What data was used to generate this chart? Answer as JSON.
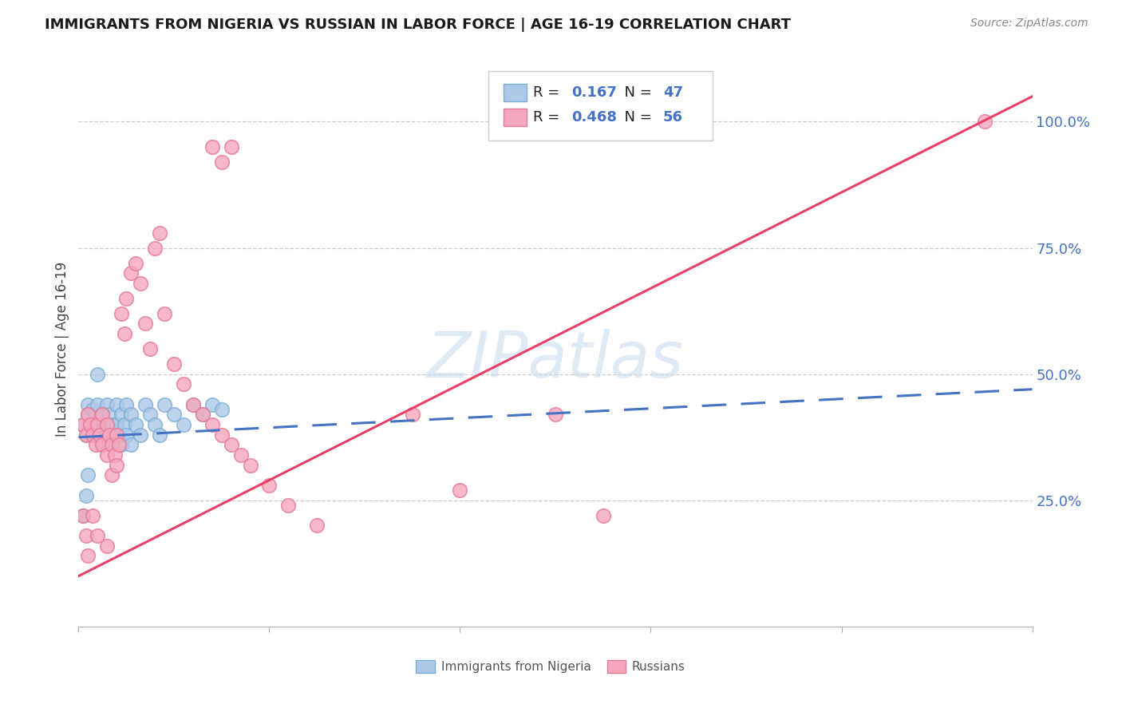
{
  "title": "IMMIGRANTS FROM NIGERIA VS RUSSIAN IN LABOR FORCE | AGE 16-19 CORRELATION CHART",
  "source": "Source: ZipAtlas.com",
  "ylabel": "In Labor Force | Age 16-19",
  "watermark": "ZIPatlas",
  "legend_nigeria_R": "0.167",
  "legend_nigeria_N": "47",
  "legend_russian_R": "0.468",
  "legend_russian_N": "56",
  "nigeria_fill": "#adc8e8",
  "nigeria_edge": "#7aafd4",
  "russian_fill": "#f5a8bc",
  "russian_edge": "#e87898",
  "nigeria_line_color": "#4472c4",
  "russian_line_color": "#e84068",
  "right_axis_color": "#4472c4",
  "bg_color": "#ffffff",
  "grid_color": "#cccccc",
  "title_color": "#1a1a1a",
  "source_color": "#888888",
  "ylabel_color": "#444444",
  "watermark_color": "#c8ddf0",
  "nigeria_x": [
    0.005,
    0.008,
    0.01,
    0.01,
    0.012,
    0.015,
    0.015,
    0.018,
    0.02,
    0.02,
    0.022,
    0.025,
    0.025,
    0.028,
    0.03,
    0.03,
    0.032,
    0.035,
    0.035,
    0.038,
    0.04,
    0.04,
    0.042,
    0.045,
    0.045,
    0.048,
    0.05,
    0.05,
    0.055,
    0.055,
    0.06,
    0.065,
    0.07,
    0.075,
    0.08,
    0.085,
    0.09,
    0.1,
    0.11,
    0.12,
    0.13,
    0.14,
    0.15,
    0.005,
    0.008,
    0.01,
    0.02
  ],
  "nigeria_y": [
    0.4,
    0.38,
    0.42,
    0.44,
    0.4,
    0.43,
    0.38,
    0.42,
    0.4,
    0.44,
    0.38,
    0.42,
    0.36,
    0.4,
    0.38,
    0.44,
    0.42,
    0.36,
    0.4,
    0.38,
    0.44,
    0.4,
    0.38,
    0.42,
    0.36,
    0.4,
    0.44,
    0.38,
    0.42,
    0.36,
    0.4,
    0.38,
    0.44,
    0.42,
    0.4,
    0.38,
    0.44,
    0.42,
    0.4,
    0.44,
    0.42,
    0.44,
    0.43,
    0.22,
    0.26,
    0.3,
    0.5
  ],
  "russian_x": [
    0.005,
    0.008,
    0.01,
    0.012,
    0.015,
    0.018,
    0.02,
    0.022,
    0.025,
    0.025,
    0.03,
    0.03,
    0.032,
    0.035,
    0.035,
    0.038,
    0.04,
    0.04,
    0.042,
    0.045,
    0.048,
    0.05,
    0.055,
    0.06,
    0.065,
    0.07,
    0.075,
    0.08,
    0.085,
    0.09,
    0.1,
    0.11,
    0.12,
    0.13,
    0.14,
    0.15,
    0.16,
    0.17,
    0.18,
    0.2,
    0.22,
    0.25,
    0.14,
    0.15,
    0.16,
    0.35,
    0.4,
    0.5,
    0.55,
    0.95,
    0.005,
    0.008,
    0.01,
    0.015,
    0.02,
    0.03
  ],
  "russian_y": [
    0.4,
    0.38,
    0.42,
    0.4,
    0.38,
    0.36,
    0.4,
    0.38,
    0.36,
    0.42,
    0.34,
    0.4,
    0.38,
    0.36,
    0.3,
    0.34,
    0.38,
    0.32,
    0.36,
    0.62,
    0.58,
    0.65,
    0.7,
    0.72,
    0.68,
    0.6,
    0.55,
    0.75,
    0.78,
    0.62,
    0.52,
    0.48,
    0.44,
    0.42,
    0.4,
    0.38,
    0.36,
    0.34,
    0.32,
    0.28,
    0.24,
    0.2,
    0.95,
    0.92,
    0.95,
    0.42,
    0.27,
    0.42,
    0.22,
    1.0,
    0.22,
    0.18,
    0.14,
    0.22,
    0.18,
    0.16
  ],
  "nigeria_line_x": [
    0.0,
    1.0
  ],
  "nigeria_line_y": [
    0.375,
    0.47
  ],
  "russian_line_x": [
    0.0,
    1.0
  ],
  "russian_line_y": [
    0.1,
    1.05
  ],
  "xlim": [
    0.0,
    1.0
  ],
  "ylim": [
    0.0,
    1.1
  ],
  "yticks": [
    0.25,
    0.5,
    0.75,
    1.0
  ],
  "ytick_labels": [
    "25.0%",
    "50.0%",
    "75.0%",
    "100.0%"
  ]
}
